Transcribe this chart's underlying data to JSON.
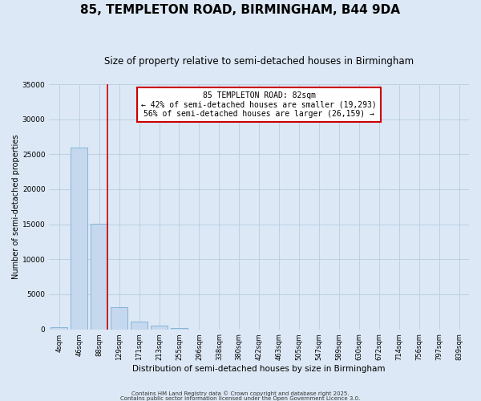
{
  "title": "85, TEMPLETON ROAD, BIRMINGHAM, B44 9DA",
  "subtitle": "Size of property relative to semi-detached houses in Birmingham",
  "xlabel": "Distribution of semi-detached houses by size in Birmingham",
  "ylabel": "Number of semi-detached properties",
  "categories": [
    "4sqm",
    "46sqm",
    "88sqm",
    "129sqm",
    "171sqm",
    "213sqm",
    "255sqm",
    "296sqm",
    "338sqm",
    "380sqm",
    "422sqm",
    "463sqm",
    "505sqm",
    "547sqm",
    "589sqm",
    "630sqm",
    "672sqm",
    "714sqm",
    "756sqm",
    "797sqm",
    "839sqm"
  ],
  "values": [
    300,
    26000,
    15100,
    3200,
    1100,
    480,
    200,
    0,
    0,
    0,
    0,
    0,
    0,
    0,
    0,
    0,
    0,
    0,
    0,
    0,
    0
  ],
  "bar_color": "#c5d8ee",
  "bar_edge_color": "#7aadd4",
  "vline_x_index": 2,
  "vline_color": "#cc0000",
  "annotation_text": "85 TEMPLETON ROAD: 82sqm\n← 42% of semi-detached houses are smaller (19,293)\n56% of semi-detached houses are larger (26,159) →",
  "annotation_box_color": "#ffffff",
  "annotation_box_edge": "#cc0000",
  "ylim": [
    0,
    35000
  ],
  "yticks": [
    0,
    5000,
    10000,
    15000,
    20000,
    25000,
    30000,
    35000
  ],
  "background_color": "#dce8f5",
  "plot_bg_color": "#dce8f5",
  "footer1": "Contains HM Land Registry data © Crown copyright and database right 2025.",
  "footer2": "Contains public sector information licensed under the Open Government Licence 3.0.",
  "title_fontsize": 11,
  "subtitle_fontsize": 8.5,
  "annotation_fontsize": 7,
  "ylabel_fontsize": 7,
  "xlabel_fontsize": 7.5,
  "tick_fontsize": 6,
  "ytick_fontsize": 6.5,
  "footer_fontsize": 5,
  "bar_width": 0.85
}
